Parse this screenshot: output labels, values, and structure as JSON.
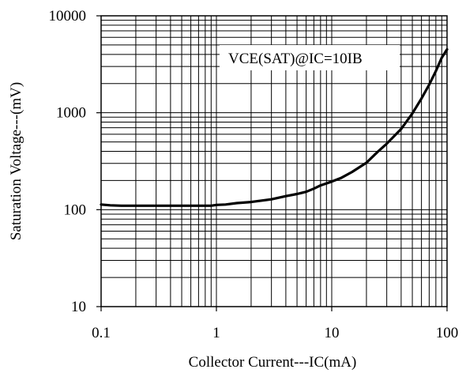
{
  "chart_data": {
    "type": "line",
    "x_scale": "log",
    "y_scale": "log",
    "xlim": [
      0.1,
      100
    ],
    "ylim": [
      10,
      10000
    ],
    "grid": true,
    "xlabel": "Collector Current---IC(mA)",
    "ylabel": "Saturation Voltage---(mV)",
    "x_tick_labels": [
      "0.1",
      "1",
      "10",
      "100"
    ],
    "y_tick_labels": [
      "10",
      "100",
      "1000",
      "10000"
    ],
    "annotation": "VCE(SAT)@IC=10IB",
    "series": [
      {
        "line_color": "#000000",
        "x": [
          0.1,
          0.12,
          0.15,
          0.2,
          0.3,
          0.5,
          0.7,
          0.9,
          1.0,
          1.2,
          1.5,
          2,
          3,
          4,
          5,
          6,
          7,
          8,
          10,
          12,
          15,
          20,
          25,
          30,
          40,
          50,
          60,
          70,
          80,
          90,
          100
        ],
        "y": [
          113,
          111,
          110,
          110,
          110,
          110,
          110,
          110,
          112,
          113,
          117,
          120,
          128,
          138,
          145,
          153,
          165,
          178,
          195,
          212,
          245,
          305,
          395,
          480,
          680,
          980,
          1400,
          1950,
          2700,
          3700,
          4500
        ]
      }
    ]
  }
}
